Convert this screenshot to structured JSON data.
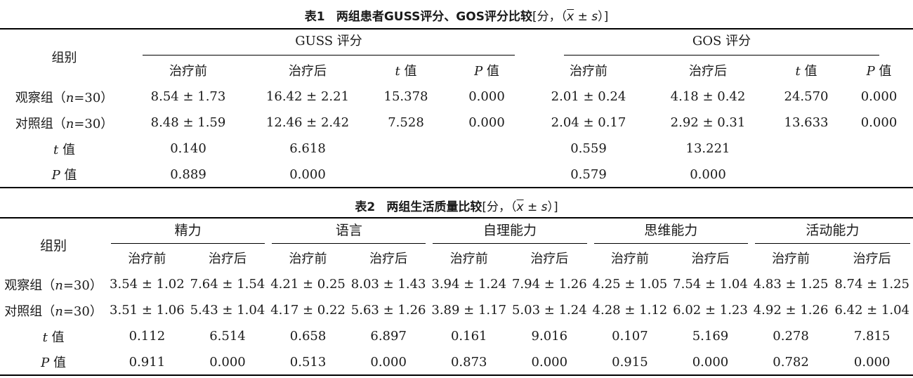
{
  "table1": {
    "caption": {
      "number": "表1",
      "title": "两组患者GUSS评分、GOS评分比较",
      "unit": "[分，（",
      "xbar": "x",
      "pm": " ± ",
      "s": "s",
      "close": "）]"
    },
    "header": {
      "group": "组别",
      "guss": "GUSS 评分",
      "gos": "GOS 评分",
      "before": "治疗前",
      "after": "治疗后",
      "t": "t",
      "p": "P",
      "val": " 值"
    },
    "rows": [
      {
        "label_pre": "观察组（",
        "n": "n",
        "label_post": "=30）",
        "guss_before": "8.54 ± 1.73",
        "guss_after": "16.42 ± 2.21",
        "guss_t": "15.378",
        "guss_p": "0.000",
        "gos_before": "2.01 ± 0.24",
        "gos_after": "4.18 ± 0.42",
        "gos_t": "24.570",
        "gos_p": "0.000"
      },
      {
        "label_pre": "对照组（",
        "n": "n",
        "label_post": "=30）",
        "guss_before": "8.48 ± 1.59",
        "guss_after": "12.46 ± 2.42",
        "guss_t": "7.528",
        "guss_p": "0.000",
        "gos_before": "2.04 ± 0.17",
        "gos_after": "2.92 ± 0.31",
        "gos_t": "13.633",
        "gos_p": "0.000"
      }
    ],
    "t_row": {
      "guss_before": "0.140",
      "guss_after": "6.618",
      "gos_before": "0.559",
      "gos_after": "13.221"
    },
    "p_row": {
      "guss_before": "0.889",
      "guss_after": "0.000",
      "gos_before": "0.579",
      "gos_after": "0.000"
    }
  },
  "table2": {
    "caption": {
      "number": "表2",
      "title": "两组生活质量比较",
      "unit": "[分，（",
      "xbar": "x",
      "pm": " ± ",
      "s": "s",
      "close": "）]"
    },
    "header": {
      "group": "组别",
      "domains": [
        "精力",
        "语言",
        "自理能力",
        "思维能力",
        "活动能力"
      ],
      "before": "治疗前",
      "after": "治疗后"
    },
    "rows": [
      {
        "label_pre": "观察组（",
        "n": "n",
        "label_post": "=30）",
        "values": [
          "3.54 ± 1.02",
          "7.64 ± 1.54",
          "4.21 ± 0.25",
          "8.03 ± 1.43",
          "3.94 ± 1.24",
          "7.94 ± 1.26",
          "4.25 ± 1.05",
          "7.54 ± 1.04",
          "4.83 ± 1.25",
          "8.74 ± 1.25"
        ]
      },
      {
        "label_pre": "对照组（",
        "n": "n",
        "label_post": "=30）",
        "values": [
          "3.51 ± 1.06",
          "5.43 ± 1.04",
          "4.17 ± 0.22",
          "5.63 ± 1.26",
          "3.89 ± 1.17",
          "5.03 ± 1.24",
          "4.28 ± 1.12",
          "6.02 ± 1.23",
          "4.92 ± 1.26",
          "6.42 ± 1.04"
        ]
      }
    ],
    "t_row": {
      "label": "t",
      "values": [
        "0.112",
        "6.514",
        "0.658",
        "6.897",
        "0.161",
        "9.016",
        "0.107",
        "5.169",
        "0.278",
        "7.815"
      ]
    },
    "p_row": {
      "label": "P",
      "values": [
        "0.911",
        "0.000",
        "0.513",
        "0.000",
        "0.873",
        "0.000",
        "0.915",
        "0.000",
        "0.782",
        "0.000"
      ]
    }
  }
}
